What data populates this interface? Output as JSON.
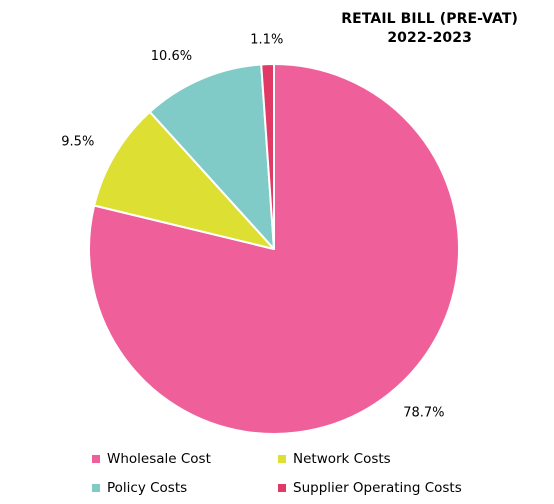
{
  "chart_data": {
    "type": "pie",
    "title": [
      "RETAIL BILL (PRE-VAT)",
      "2022-2023"
    ],
    "unit": "%",
    "slices": [
      {
        "label": "Wholesale Cost",
        "value": 78.7,
        "display": "78.7%",
        "color": "#ef609a"
      },
      {
        "label": "Network Costs",
        "value": 9.5,
        "display": "9.5%",
        "color": "#dddf33"
      },
      {
        "label": "Policy Costs",
        "value": 10.6,
        "display": "10.6%",
        "color": "#80cbc8"
      },
      {
        "label": "Supplier Operating Costs",
        "value": 1.1,
        "display": "1.1%",
        "color": "#e23a67"
      }
    ],
    "start_angle_deg": 0,
    "direction": "clockwise",
    "legend_position": "bottom"
  }
}
